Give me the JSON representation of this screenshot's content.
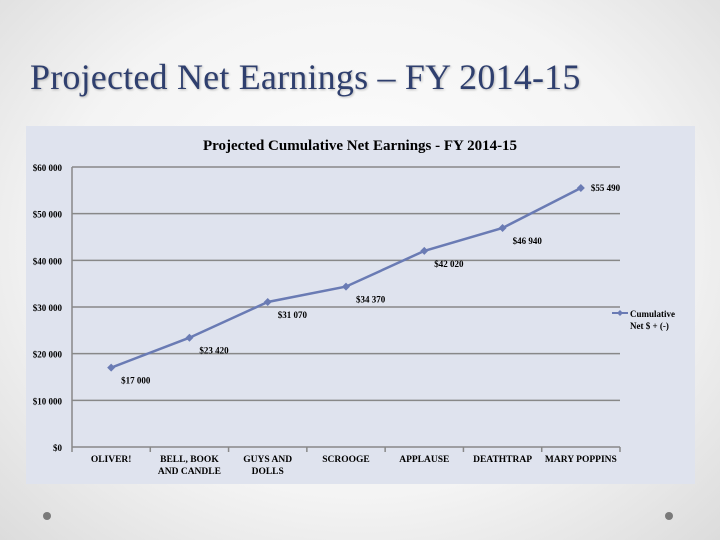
{
  "slide": {
    "title": "Projected Net Earnings – FY 2014-15"
  },
  "chart_data": {
    "type": "line",
    "title": "Projected Cumulative Net Earnings - FY 2014-15",
    "categories": [
      "OLIVER!",
      "BELL, BOOK AND CANDLE",
      "GUYS AND DOLLS",
      "SCROOGE",
      "APPLAUSE",
      "DEATHTRAP",
      "MARY POPPINS"
    ],
    "category_lines": [
      [
        "OLIVER!"
      ],
      [
        "BELL, BOOK",
        "AND CANDLE"
      ],
      [
        "GUYS AND",
        "DOLLS"
      ],
      [
        "SCROOGE"
      ],
      [
        "APPLAUSE"
      ],
      [
        "DEATHTRAP"
      ],
      [
        "MARY POPPINS"
      ]
    ],
    "series": [
      {
        "name": "Cumulative Net $ + (-)",
        "name_lines": [
          "Cumulative",
          "Net $  + (-)"
        ],
        "values": [
          17000,
          23420,
          31070,
          34370,
          42020,
          46940,
          55490
        ],
        "color": "#6a7bb4"
      }
    ],
    "data_labels": [
      "$17 000",
      "$23 420",
      "$31 070",
      "$34 370",
      "$42 020",
      "$46 940",
      "$55 490"
    ],
    "ylim": [
      0,
      60000
    ],
    "yticks": [
      0,
      10000,
      20000,
      30000,
      40000,
      50000,
      60000
    ],
    "ytick_labels": [
      "$0",
      "$10 000",
      "$20 000",
      "$30 000",
      "$40 000",
      "$50 000",
      "$60 000"
    ],
    "grid": true,
    "legend": "right",
    "background": "#dfe3ee",
    "grid_color": "#888888"
  }
}
